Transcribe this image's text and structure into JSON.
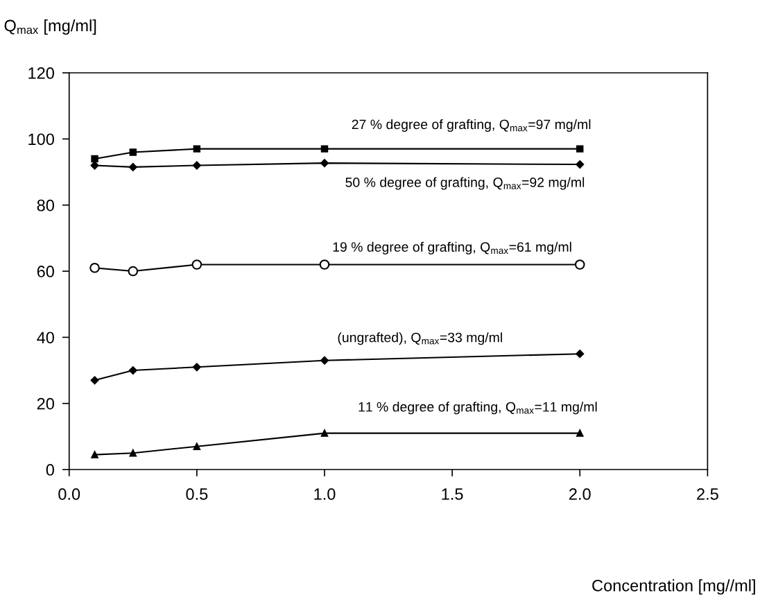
{
  "chart_data": {
    "type": "line",
    "xlabel": "Concentration [mg//ml]",
    "ylabel": "Q$_{max}$ [mg/ml]",
    "x": [
      0.1,
      0.25,
      0.5,
      1.0,
      2.0
    ],
    "series": [
      {
        "name": "27 % degree of grafting, Q$_{max}$=97 mg/ml",
        "color": "#000000",
        "marker": "square",
        "values": [
          94,
          96,
          97,
          97,
          97
        ]
      },
      {
        "name": "50 % degree of grafting, Q$_{max}$=92 mg/ml",
        "color": "#000000",
        "marker": "diamond",
        "values": [
          92,
          91.5,
          92,
          92.7,
          92.3
        ]
      },
      {
        "name": "19 % degree of grafting, Q$_{max}$=61 mg/ml",
        "color": "#000000",
        "marker": "circle",
        "values": [
          61,
          60,
          62,
          62,
          62
        ]
      },
      {
        "name": "(ungrafted), Q$_{max}$=33 mg/ml",
        "color": "#000000",
        "marker": "diamond",
        "values": [
          27,
          30,
          31,
          33,
          35
        ]
      },
      {
        "name": "11 % degree of grafting, Q$_{max}$=11 mg/ml",
        "color": "#000000",
        "marker": "triangle",
        "values": [
          4.5,
          5,
          7,
          11,
          11
        ]
      }
    ],
    "xlim": [
      0,
      2.5
    ],
    "xticks": [
      {
        "value": 0,
        "label": "0.0"
      },
      0.5,
      {
        "value": 1,
        "label": "1.0"
      },
      1.5,
      {
        "value": 2,
        "label": "2.0"
      },
      2.5
    ],
    "ylim": [
      0,
      120
    ],
    "yticks": [
      0,
      20,
      40,
      60,
      80,
      100,
      120
    ],
    "grid": false,
    "line_style": "solid"
  }
}
